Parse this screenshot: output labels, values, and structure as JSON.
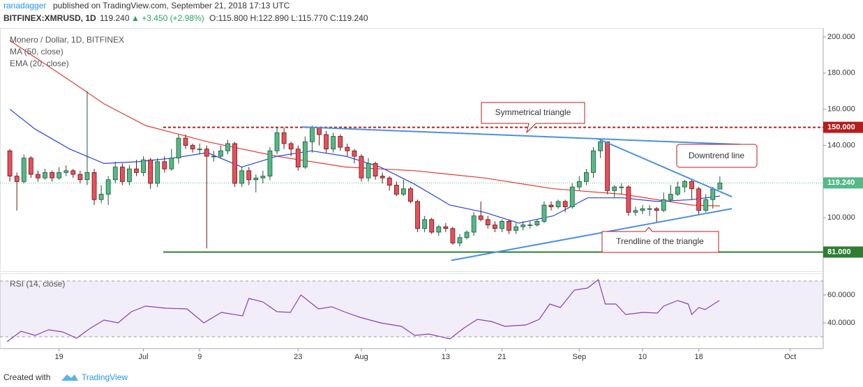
{
  "header": {
    "author": "ranadagger",
    "published": "published on TradingView.com, September 21, 2018 17:13 UTC",
    "symbol": "BITFINEX:XMRUSD, 1D",
    "price": "119.240",
    "change": "▲ +3.450 (+2.98%)",
    "ohlc": "O:115.800 H:122.890 L:115.770 C:119.240"
  },
  "footer": {
    "created": "Created with",
    "brand": "TradingView"
  },
  "chart_data": [
    {
      "type": "candlestick",
      "title": "Monero / Dollar, 1D, BITFINEX",
      "up_color": "#53b987",
      "down_color": "#eb4d5c",
      "open": [
        137,
        123,
        120,
        133,
        124,
        122,
        125,
        122,
        125,
        126,
        124,
        121,
        125,
        110,
        113,
        121,
        128,
        120,
        127,
        125,
        132,
        119,
        131,
        127,
        133,
        144,
        140,
        138,
        138,
        134,
        134,
        137,
        141,
        119,
        126,
        121,
        122,
        123,
        137,
        147,
        141,
        138,
        128,
        142,
        150,
        146,
        138,
        145,
        139,
        137,
        134,
        122,
        130,
        123,
        122,
        118,
        113,
        116,
        109,
        94,
        99,
        92,
        95,
        94,
        86,
        89,
        92,
        101,
        99,
        96,
        94,
        98,
        93,
        95,
        96,
        96,
        98,
        107,
        106,
        109,
        106,
        117,
        120,
        125,
        137,
        142,
        115,
        117,
        117,
        103,
        104,
        105,
        105,
        104,
        110,
        113,
        117,
        120,
        116,
        104,
        110,
        115.8
      ],
      "high": [
        138,
        125,
        135,
        134,
        126,
        127,
        126,
        128,
        129,
        127,
        126,
        170,
        127,
        118,
        123,
        131,
        130,
        129,
        132,
        134,
        133,
        133,
        134,
        138,
        146,
        146,
        141,
        141,
        140,
        137,
        140,
        143,
        142,
        128,
        128,
        124,
        126,
        139,
        150,
        150,
        142,
        140,
        145,
        151,
        150,
        148,
        147,
        146,
        141,
        138,
        135,
        133,
        131,
        125,
        123,
        120,
        121,
        117,
        110,
        101,
        100,
        96,
        97,
        95,
        91,
        93,
        103,
        109,
        101,
        98,
        99,
        99,
        97,
        98,
        98,
        99,
        109,
        109,
        110,
        110,
        119,
        123,
        127,
        139,
        143,
        142,
        118,
        119,
        118,
        106,
        107,
        107,
        106,
        114,
        118,
        120,
        121,
        121,
        117,
        113,
        117,
        122.89
      ],
      "low": [
        120,
        104,
        119,
        122,
        120,
        121,
        120,
        121,
        123,
        122,
        119,
        118,
        107,
        108,
        107,
        119,
        118,
        118,
        123,
        123,
        116,
        117,
        125,
        126,
        130,
        138,
        136,
        135,
        83,
        131,
        133,
        135,
        117,
        117,
        118,
        114,
        119,
        121,
        135,
        138,
        134,
        126,
        127,
        136,
        140,
        136,
        136,
        137,
        134,
        130,
        120,
        120,
        121,
        119,
        115,
        112,
        112,
        108,
        92,
        92,
        91,
        90,
        92,
        85,
        84,
        88,
        90,
        98,
        94,
        92,
        92,
        91,
        91,
        93,
        94,
        95,
        97,
        104,
        105,
        103,
        105,
        115,
        118,
        122,
        133,
        113,
        111,
        113,
        101,
        101,
        102,
        101,
        97,
        103,
        109,
        112,
        114,
        110,
        102,
        103,
        105,
        115.77
      ],
      "close": [
        123,
        120,
        133,
        124,
        122,
        125,
        122,
        125,
        126,
        124,
        121,
        125,
        110,
        113,
        121,
        128,
        120,
        127,
        125,
        132,
        119,
        131,
        127,
        133,
        144,
        140,
        138,
        138,
        134,
        134,
        137,
        141,
        119,
        126,
        121,
        122,
        123,
        137,
        147,
        141,
        138,
        128,
        142,
        150,
        146,
        138,
        145,
        139,
        137,
        134,
        122,
        130,
        123,
        122,
        118,
        113,
        116,
        109,
        94,
        99,
        92,
        95,
        94,
        86,
        89,
        92,
        101,
        99,
        96,
        94,
        98,
        93,
        95,
        96,
        96,
        98,
        107,
        106,
        109,
        106,
        117,
        120,
        125,
        137,
        142,
        115,
        117,
        117,
        103,
        104,
        105,
        105,
        104,
        110,
        113,
        117,
        120,
        116,
        104,
        110,
        115.8,
        119.24
      ],
      "series": [
        {
          "name": "MA (50, close)",
          "color": "#e53935",
          "x": [
            0,
            8.5,
            13.4,
            19.3,
            28.1,
            38,
            47.8,
            57.6,
            67.5,
            77.3,
            87.1,
            97,
            101
          ],
          "values": [
            198,
            176,
            163,
            151,
            142,
            134,
            128,
            126,
            122,
            116,
            113,
            107,
            106.5
          ]
        },
        {
          "name": "EMA (20, close)",
          "color": "#2945d6",
          "x": [
            0,
            3.6,
            8.5,
            13.4,
            18.3,
            23.2,
            28.1,
            33,
            38,
            42.9,
            47.8,
            52.7,
            57.6,
            62.6,
            67.5,
            72.4,
            77.3,
            82.2,
            87.1,
            92,
            97,
            101
          ],
          "values": [
            160,
            149,
            138,
            130,
            131,
            133,
            136,
            128,
            134,
            137,
            134,
            128,
            118.5,
            107,
            103,
            97,
            101,
            111,
            111,
            109,
            110,
            112
          ]
        }
      ],
      "hlines": [
        {
          "value": 150,
          "label": "150.000",
          "color": "#b71c1c",
          "style": "dashed"
        },
        {
          "value": 81,
          "label": "81.000",
          "color": "#2e7d32",
          "style": "solid"
        }
      ],
      "last_price": {
        "value": 119.24,
        "label": "119.240"
      },
      "trendlines": [
        {
          "x": [
            41.6,
            103.9
          ],
          "values": [
            150.2,
            140.5
          ]
        },
        {
          "x": [
            83.7,
            102.7
          ],
          "values": [
            143.6,
            111.6
          ]
        },
        {
          "x": [
            62.8,
            102.7
          ],
          "values": [
            76.4,
            105
          ]
        }
      ],
      "trend_color": "#4a90e2",
      "annotations": [
        "Symmetrical triangle",
        "Downtrend line",
        "Trendline of the triangle"
      ],
      "xlim": [
        -1.4,
        115.7
      ],
      "ylim": [
        70,
        205
      ],
      "yticks": [
        {
          "value": 100,
          "label": "100.000"
        },
        {
          "value": 120,
          "label": "120.000"
        },
        {
          "value": 140,
          "label": "140.000"
        },
        {
          "value": 160,
          "label": "160.000"
        },
        {
          "value": 180,
          "label": "180.000"
        },
        {
          "value": 200,
          "label": "200.000"
        }
      ]
    },
    {
      "type": "line",
      "title": "RSI (14, close)",
      "series": [
        {
          "color": "#8a3fb5",
          "x": [
            -0.4,
            1.6,
            3.6,
            5.5,
            7.5,
            9.5,
            11.4,
            13.4,
            15.4,
            17.3,
            19.3,
            22.2,
            25.2,
            27.6,
            30.1,
            33.1,
            34,
            36,
            38,
            39.9,
            41.4,
            43.9,
            45.8,
            47.8,
            49.8,
            52.7,
            55.7,
            57.6,
            59.6,
            62.6,
            64.5,
            66.5,
            68.5,
            70.4,
            73.4,
            75.3,
            76.8,
            78.3,
            80.3,
            82.2,
            83.7,
            84.7,
            86.2,
            87.6,
            90.1,
            92.1,
            93,
            95,
            96.5,
            97,
            98,
            98.9,
            100.9
          ],
          "values": [
            26.5,
            34,
            31,
            35,
            33.5,
            29,
            36,
            42,
            40,
            48,
            52,
            50.5,
            50,
            40,
            47.5,
            45,
            57.5,
            55,
            48,
            47.5,
            60,
            50,
            51.5,
            47.5,
            44,
            40,
            37.5,
            31,
            32,
            28.5,
            36,
            42.5,
            41,
            37.5,
            38.5,
            42.5,
            53.5,
            51,
            63.5,
            65,
            71,
            53.5,
            53.5,
            46,
            47.5,
            47,
            52,
            56,
            53.5,
            46,
            51,
            49.5,
            56
          ]
        }
      ],
      "band": [
        30,
        70
      ],
      "band_color": "#7e57c2",
      "xlim": [
        -1.4,
        115.7
      ],
      "ylim": [
        21.5,
        75.5
      ],
      "yticks": [
        {
          "value": 40,
          "label": "40.0000"
        },
        {
          "value": 60,
          "label": "60.0000"
        }
      ],
      "xticks": [
        {
          "value": 7,
          "label": "19"
        },
        {
          "value": 19,
          "label": "Jul"
        },
        {
          "value": 27,
          "label": "9"
        },
        {
          "value": 41,
          "label": "23"
        },
        {
          "value": 50,
          "label": "Aug"
        },
        {
          "value": 62,
          "label": "13"
        },
        {
          "value": 70,
          "label": "21"
        },
        {
          "value": 81,
          "label": "Sep"
        },
        {
          "value": 90,
          "label": "10"
        },
        {
          "value": 98,
          "label": "18"
        },
        {
          "value": 111,
          "label": "Oct"
        }
      ]
    }
  ]
}
